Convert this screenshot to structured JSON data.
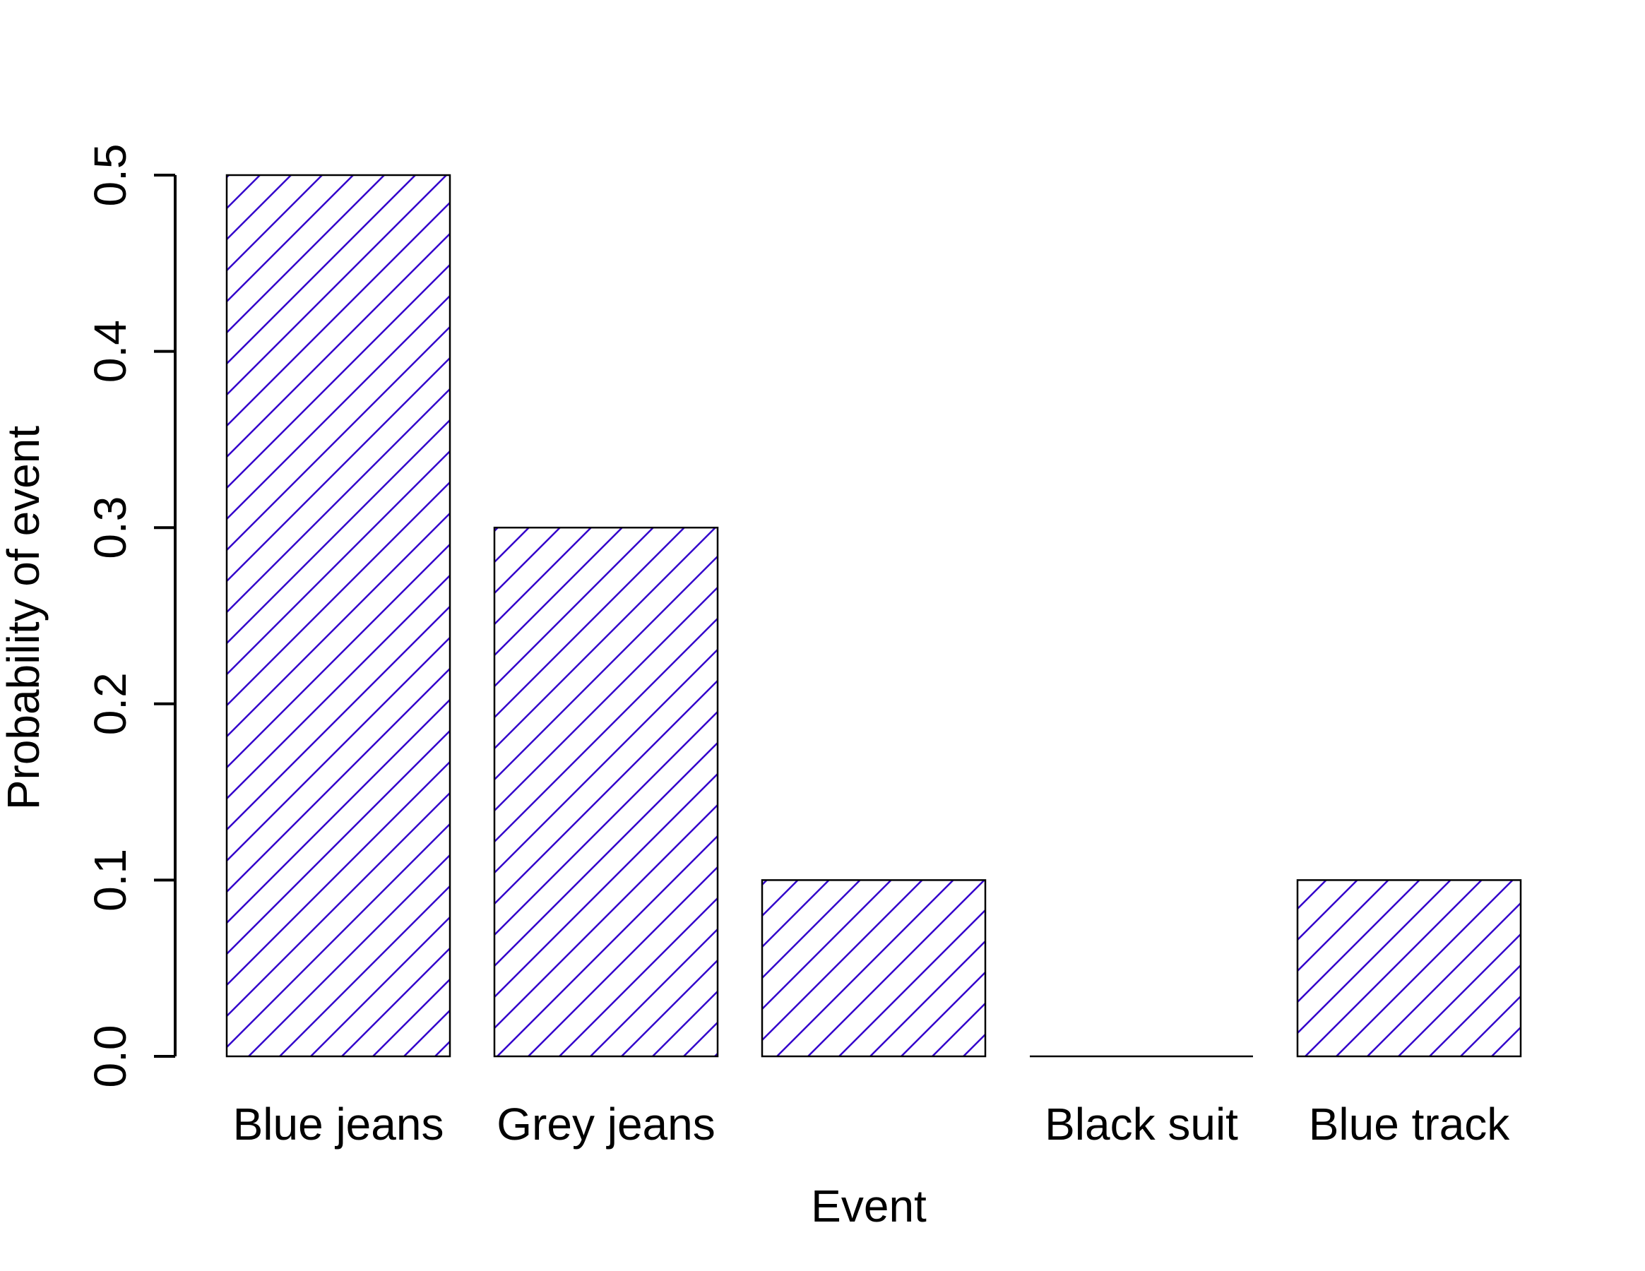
{
  "chart_data": {
    "type": "bar",
    "title": "",
    "xlabel": "Event",
    "ylabel": "Probability of event",
    "categories": [
      "Blue jeans",
      "Grey jeans",
      "",
      "Black suit",
      "Blue track"
    ],
    "values": [
      0.5,
      0.3,
      0.1,
      0.0,
      0.1
    ],
    "ylim": [
      0,
      0.5
    ],
    "yticks": [
      0.0,
      0.1,
      0.2,
      0.3,
      0.4,
      0.5
    ],
    "ytick_labels": [
      "0.0",
      "0.1",
      "0.2",
      "0.3",
      "0.4",
      "0.5"
    ],
    "grid": false,
    "legend": "none",
    "fill": "diagonal-hatch",
    "colors": {
      "hatch": "#3300cc",
      "outline": "#000000",
      "axis": "#000000"
    }
  }
}
